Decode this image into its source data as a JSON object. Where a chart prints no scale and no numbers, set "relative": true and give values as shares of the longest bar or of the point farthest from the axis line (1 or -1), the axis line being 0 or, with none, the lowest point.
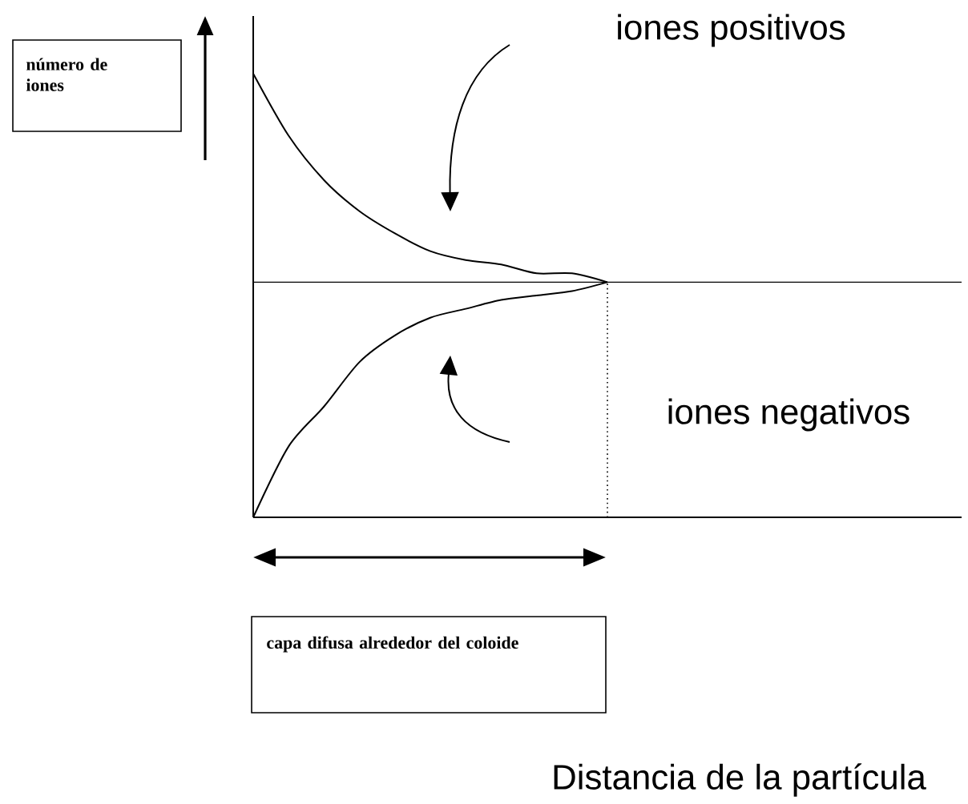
{
  "chart_data": {
    "type": "line",
    "relative": true,
    "categories": [
      null,
      null,
      null,
      null,
      null,
      null,
      null,
      null,
      null,
      null,
      null,
      null,
      null,
      null,
      null,
      null,
      null,
      null,
      null,
      null,
      null
    ],
    "series": [
      {
        "name": null,
        "color": "#000000",
        "values": [
          1.0,
          0.86,
          0.76,
          0.69,
          0.64,
          0.6,
          0.58,
          0.57,
          0.55,
          0.55,
          0.53,
          null,
          null,
          null,
          null,
          null,
          null,
          null,
          null,
          null,
          null
        ]
      },
      {
        "name": null,
        "color": "#000000",
        "values": [
          0,
          0.16,
          0.25,
          0.35,
          0.41,
          0.45,
          0.47,
          0.49,
          0.5,
          0.51,
          0.53,
          null,
          null,
          null,
          null,
          null,
          null,
          null,
          null,
          null,
          null
        ]
      }
    ],
    "ref_lines": [
      {
        "axis": "y",
        "value": 0.53,
        "color": "#000000",
        "line_style": "solid"
      }
    ],
    "annotations": [
      "iones positivos",
      "iones negativos",
      "capa difusa alrededor del coloide",
      "número de iones",
      "Distancia de la partícula"
    ],
    "marker": "none",
    "line_style": "solid"
  }
}
